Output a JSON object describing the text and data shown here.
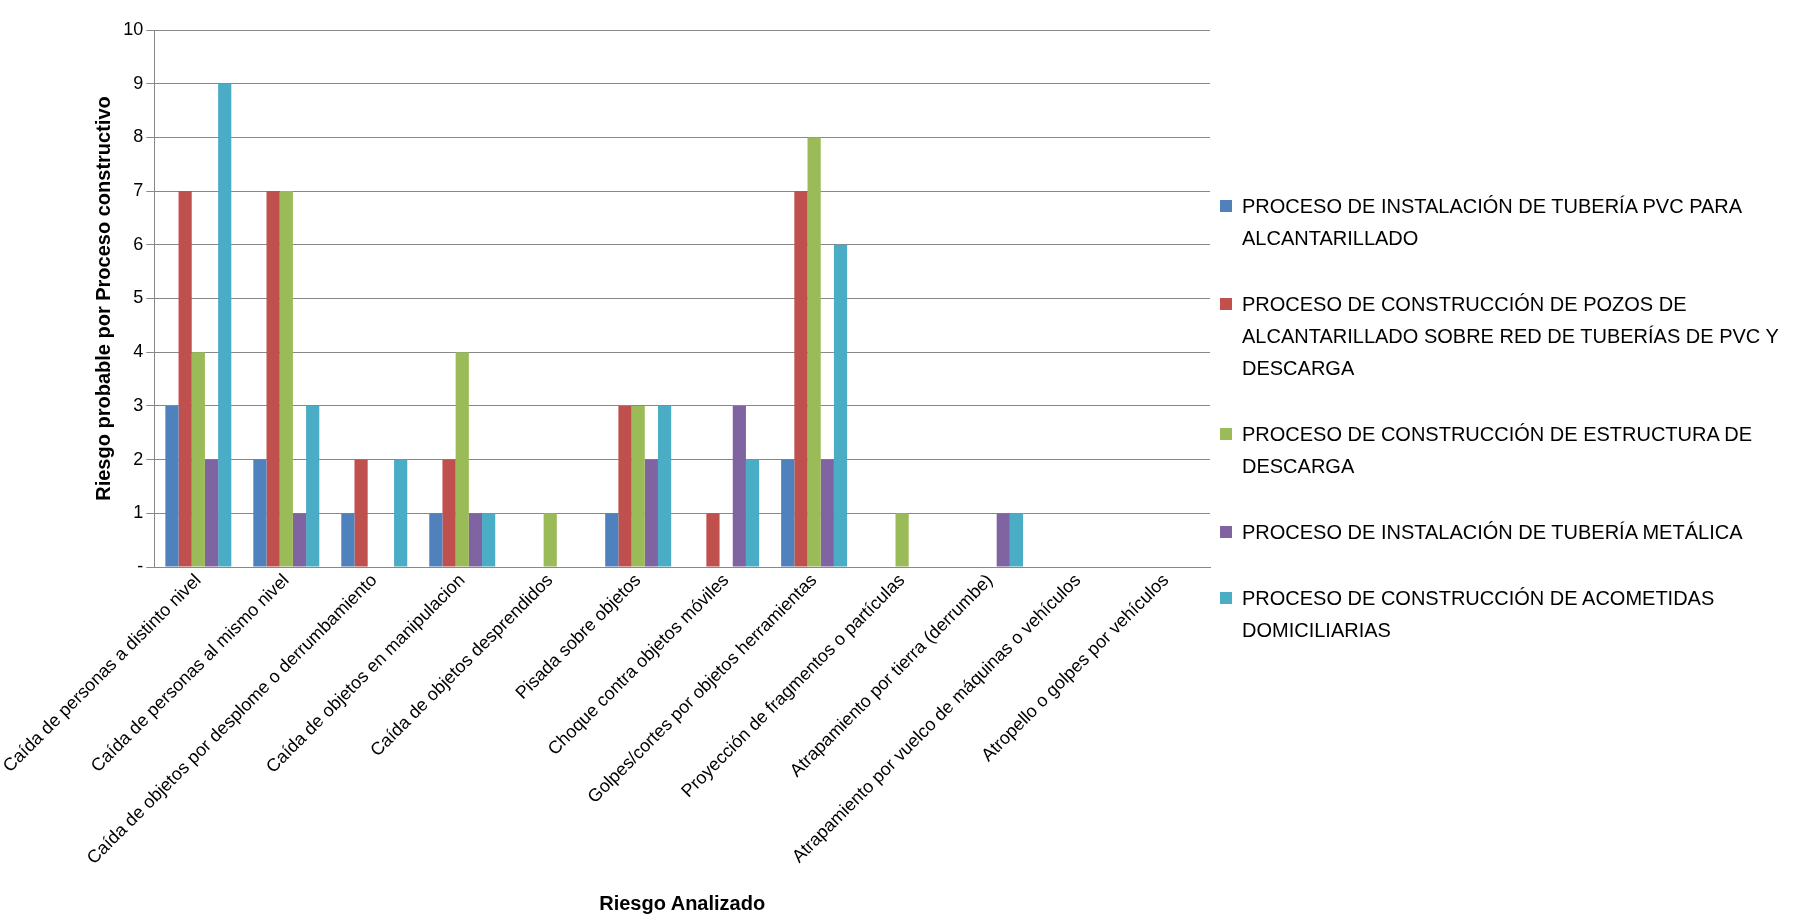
{
  "chart_data": {
    "type": "bar",
    "xlabel": "Riesgo Analizado",
    "ylabel": "Riesgo probable por Proceso constructivo",
    "categories": [
      "Caída de personas a distinto nivel",
      "Caída de personas al mismo nivel",
      "Caída de objetos por desplome o derrumbamiento",
      "Caída de objetos en manipulacion",
      "Caída de objetos desprendidos",
      "Pisada sobre objetos",
      "Choque contra objetos móviles",
      "Golpes/cortes por objetos herramientas",
      "Proyección de fragmentos o partículas",
      "Atrapamiento por tierra (derrumbe)",
      "Atrapamiento por vuelco de máquinas o vehículos",
      "Atropello o golpes por vehículos"
    ],
    "series": [
      {
        "name": "PROCESO DE INSTALACIÓN DE TUBERÍA PVC PARA ALCANTARILLADO",
        "color": "#4f81bd",
        "values": [
          3,
          2,
          1,
          1,
          0,
          1,
          0,
          2,
          0,
          0,
          0,
          0
        ]
      },
      {
        "name": "PROCESO DE CONSTRUCCIÓN DE POZOS DE ALCANTARILLADO SOBRE RED DE TUBERÍAS DE PVC Y DESCARGA",
        "color": "#c0504d",
        "values": [
          7,
          7,
          2,
          2,
          0,
          3,
          1,
          7,
          0,
          0,
          0,
          0
        ]
      },
      {
        "name": "PROCESO DE CONSTRUCCIÓN DE ESTRUCTURA DE DESCARGA",
        "color": "#9bbb59",
        "values": [
          4,
          7,
          0,
          4,
          1,
          3,
          0,
          8,
          1,
          0,
          0,
          0
        ]
      },
      {
        "name": "PROCESO DE INSTALACIÓN DE TUBERÍA METÁLICA",
        "color": "#8064a2",
        "values": [
          2,
          1,
          0,
          1,
          0,
          2,
          3,
          2,
          0,
          1,
          0,
          0
        ]
      },
      {
        "name": "PROCESO DE CONSTRUCCIÓN DE ACOMETIDAS DOMICILIARIAS",
        "color": "#4bacc6",
        "values": [
          9,
          3,
          2,
          1,
          0,
          3,
          2,
          6,
          0,
          1,
          0,
          0
        ]
      }
    ],
    "ylim": [
      0,
      10
    ],
    "yticks": [
      {
        "value": 0,
        "label": "-"
      },
      1,
      2,
      3,
      4,
      5,
      6,
      7,
      8,
      9,
      10
    ],
    "grid": "y",
    "legend": "right"
  }
}
